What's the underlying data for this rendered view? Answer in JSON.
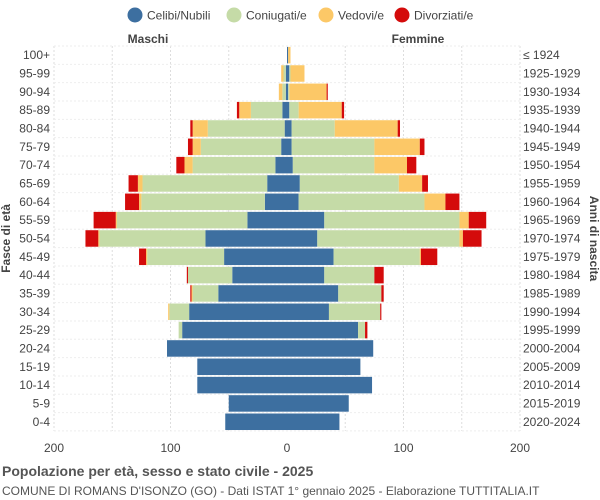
{
  "chart_data": {
    "type": "bar",
    "orientation": "horizontal-population-pyramid",
    "legend": {
      "position": "top",
      "items": [
        {
          "name": "Celibi/Nubili",
          "color": "#3d6fa0"
        },
        {
          "name": "Coniugati/e",
          "color": "#c5dba7"
        },
        {
          "name": "Vedovi/e",
          "color": "#fcc867"
        },
        {
          "name": "Divorziati/e",
          "color": "#d40b0b"
        }
      ]
    },
    "side_labels": {
      "left": "Maschi",
      "right": "Femmine"
    },
    "ylabel_left": "Fasce di età",
    "ylabel_right": "Anni di nascita",
    "xlim": [
      -200,
      200
    ],
    "xticks": [
      -200,
      -100,
      0,
      100,
      200
    ],
    "xtick_labels": [
      "200",
      "100",
      "0",
      "100",
      "200"
    ],
    "grid": true,
    "categories": [
      "100+",
      "95-99",
      "90-94",
      "85-89",
      "80-84",
      "75-79",
      "70-74",
      "65-69",
      "60-64",
      "55-59",
      "50-54",
      "45-49",
      "40-44",
      "35-39",
      "30-34",
      "25-29",
      "20-24",
      "15-19",
      "10-14",
      "5-9",
      "0-4"
    ],
    "birth_years": [
      "≤ 1924",
      "1925-1929",
      "1930-1934",
      "1935-1939",
      "1940-1944",
      "1945-1949",
      "1950-1954",
      "1955-1959",
      "1960-1964",
      "1965-1969",
      "1970-1974",
      "1975-1979",
      "1980-1984",
      "1985-1989",
      "1990-1994",
      "1995-1999",
      "2000-2004",
      "2005-2009",
      "2010-2014",
      "2015-2019",
      "2020-2024"
    ],
    "males": {
      "celibi": [
        0,
        1,
        1,
        4,
        2,
        5,
        10,
        17,
        19,
        34,
        70,
        54,
        47,
        59,
        84,
        90,
        103,
        77,
        77,
        50,
        53
      ],
      "coniugati": [
        0,
        2,
        3,
        27,
        66,
        69,
        71,
        107,
        106,
        112,
        91,
        66,
        38,
        22,
        17,
        3,
        0,
        0,
        0,
        0,
        0
      ],
      "vedovi": [
        0,
        2,
        3,
        10,
        13,
        7,
        7,
        4,
        2,
        1,
        1,
        1,
        0,
        1,
        1,
        0,
        0,
        0,
        0,
        0,
        0
      ],
      "divorziati": [
        0,
        0,
        0,
        2,
        2,
        4,
        7,
        8,
        12,
        19,
        11,
        6,
        1,
        1,
        0,
        0,
        0,
        0,
        0,
        0,
        0
      ]
    },
    "females": {
      "nubili": [
        1,
        2,
        1,
        2,
        4,
        4,
        5,
        11,
        10,
        32,
        26,
        40,
        32,
        44,
        36,
        61,
        74,
        63,
        73,
        53,
        45
      ],
      "coniugate": [
        0,
        1,
        1,
        8,
        37,
        71,
        70,
        85,
        108,
        116,
        122,
        74,
        43,
        37,
        44,
        6,
        0,
        0,
        0,
        0,
        0
      ],
      "vedove": [
        2,
        12,
        32,
        37,
        54,
        39,
        28,
        20,
        18,
        8,
        3,
        1,
        0,
        0,
        0,
        0,
        0,
        0,
        0,
        0,
        0
      ],
      "divorziate": [
        0,
        0,
        1,
        2,
        2,
        4,
        8,
        5,
        12,
        15,
        16,
        14,
        8,
        2,
        1,
        2,
        0,
        0,
        0,
        0,
        0
      ]
    }
  },
  "footer": {
    "title": "Popolazione per età, sesso e stato civile - 2025",
    "subtitle": "COMUNE DI ROMANS D'ISONZO (GO) - Dati ISTAT 1° gennaio 2025 - Elaborazione TUTTITALIA.IT"
  }
}
